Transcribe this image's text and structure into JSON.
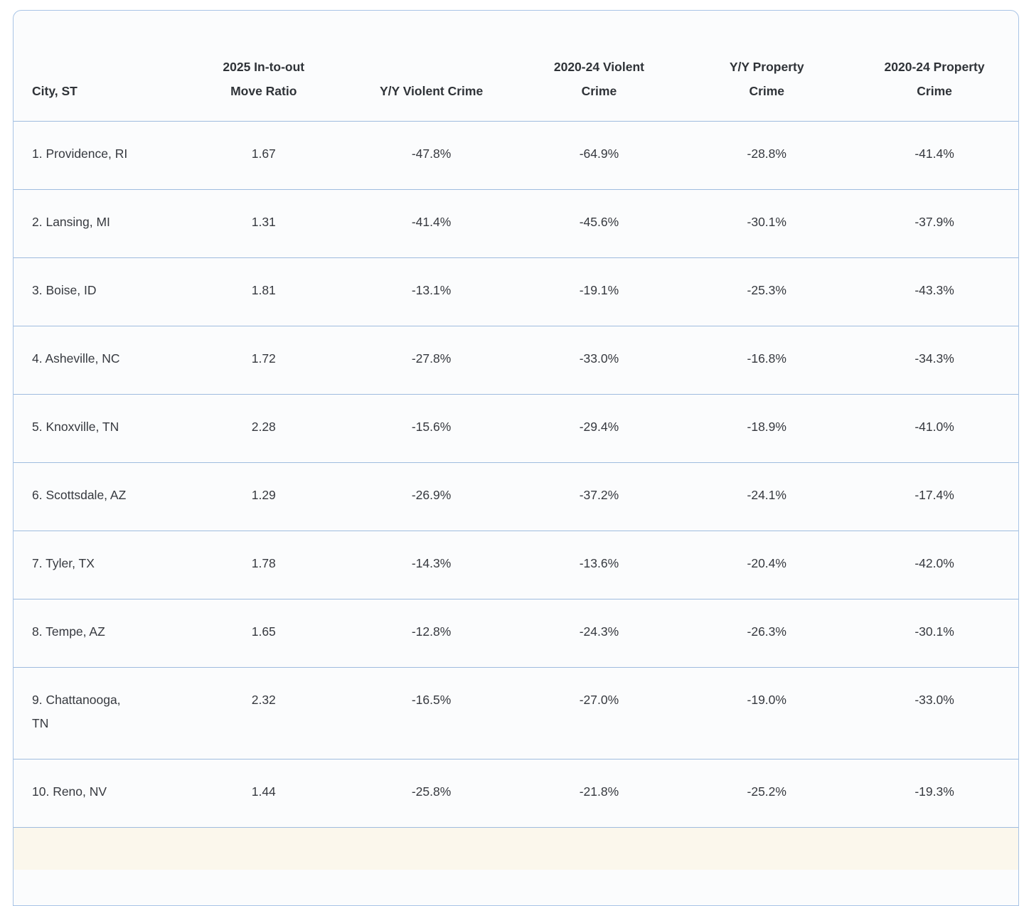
{
  "colors": {
    "card_border": "#a8c4e6",
    "row_divider": "#9fbcdf",
    "card_background": "#fbfcfd",
    "partial_row_background": "#fbf7ec",
    "text": "#36393f"
  },
  "chart_data": {
    "type": "table",
    "columns": [
      {
        "key": "city",
        "label": "City, ST"
      },
      {
        "key": "move_ratio",
        "label": "2025 In-to-out\nMove Ratio"
      },
      {
        "key": "yy_violent",
        "label": "Y/Y Violent Crime"
      },
      {
        "key": "violent_2020_24",
        "label": "2020-24 Violent\nCrime"
      },
      {
        "key": "yy_property",
        "label": "Y/Y Property\nCrime"
      },
      {
        "key": "property_2020_24",
        "label": "2020-24 Property\nCrime"
      }
    ],
    "rows": [
      {
        "city": "1. Providence, RI",
        "move_ratio": "1.67",
        "yy_violent": "-47.8%",
        "violent_2020_24": "-64.9%",
        "yy_property": "-28.8%",
        "property_2020_24": "-41.4%"
      },
      {
        "city": "2. Lansing, MI",
        "move_ratio": "1.31",
        "yy_violent": "-41.4%",
        "violent_2020_24": "-45.6%",
        "yy_property": "-30.1%",
        "property_2020_24": "-37.9%"
      },
      {
        "city": "3. Boise, ID",
        "move_ratio": "1.81",
        "yy_violent": "-13.1%",
        "violent_2020_24": "-19.1%",
        "yy_property": "-25.3%",
        "property_2020_24": "-43.3%"
      },
      {
        "city": "4. Asheville, NC",
        "move_ratio": "1.72",
        "yy_violent": "-27.8%",
        "violent_2020_24": "-33.0%",
        "yy_property": "-16.8%",
        "property_2020_24": "-34.3%"
      },
      {
        "city": "5. Knoxville, TN",
        "move_ratio": "2.28",
        "yy_violent": "-15.6%",
        "violent_2020_24": "-29.4%",
        "yy_property": "-18.9%",
        "property_2020_24": "-41.0%"
      },
      {
        "city": "6. Scottsdale, AZ",
        "move_ratio": "1.29",
        "yy_violent": "-26.9%",
        "violent_2020_24": "-37.2%",
        "yy_property": "-24.1%",
        "property_2020_24": "-17.4%"
      },
      {
        "city": "7. Tyler, TX",
        "move_ratio": "1.78",
        "yy_violent": "-14.3%",
        "violent_2020_24": "-13.6%",
        "yy_property": "-20.4%",
        "property_2020_24": "-42.0%"
      },
      {
        "city": "8. Tempe, AZ",
        "move_ratio": "1.65",
        "yy_violent": "-12.8%",
        "violent_2020_24": "-24.3%",
        "yy_property": "-26.3%",
        "property_2020_24": "-30.1%"
      },
      {
        "city": "9. Chattanooga,\nTN",
        "move_ratio": "2.32",
        "yy_violent": "-16.5%",
        "violent_2020_24": "-27.0%",
        "yy_property": "-19.0%",
        "property_2020_24": "-33.0%"
      },
      {
        "city": "10. Reno, NV",
        "move_ratio": "1.44",
        "yy_violent": "-25.8%",
        "violent_2020_24": "-21.8%",
        "yy_property": "-25.2%",
        "property_2020_24": "-19.3%"
      }
    ]
  }
}
